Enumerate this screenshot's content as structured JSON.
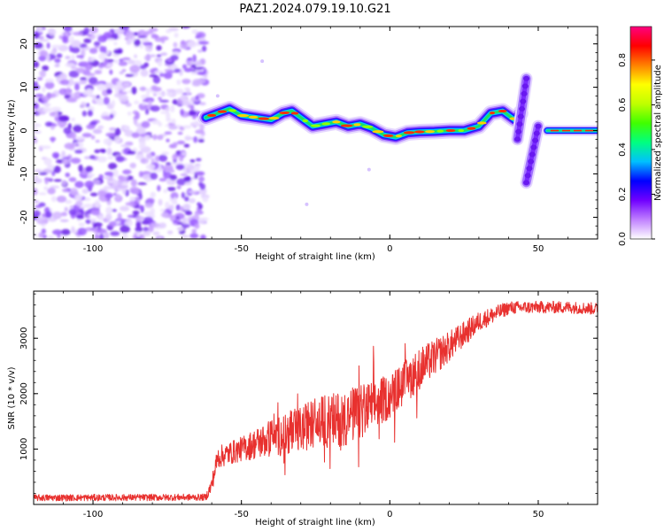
{
  "title": "PAZ1.2024.079.19.10.G21",
  "chart_data": [
    {
      "type": "heatmap",
      "xlabel": "Height of straight line (km)",
      "ylabel": "Frequency (Hz)",
      "xlim": [
        -120,
        70
      ],
      "ylim": [
        -25,
        24
      ],
      "xticks": [
        -100,
        -50,
        0,
        50
      ],
      "yticks": [
        -20,
        -10,
        0,
        10,
        20
      ],
      "colorbar": {
        "label": "Normalized spectral amplitude",
        "range": [
          0,
          0.95
        ],
        "ticks": [
          0.0,
          0.2,
          0.4,
          0.6,
          0.8
        ],
        "tick_labels": [
          "0.0",
          "0.2",
          "0.4",
          "0.6",
          "0.8"
        ],
        "colors": [
          "#ffffff",
          "#c080ff",
          "#7000ff",
          "#0000ff",
          "#00c0ff",
          "#00ff80",
          "#40ff00",
          "#c0ff00",
          "#ffff00",
          "#ff8000",
          "#ff0000",
          "#ff0080"
        ]
      },
      "noise_region_x": [
        -120,
        -62
      ],
      "ridge": {
        "x": [
          -62,
          -58,
          -54,
          -50,
          -45,
          -40,
          -36,
          -33,
          -30,
          -26,
          -22,
          -18,
          -14,
          -10,
          -6,
          -2,
          2,
          6,
          10,
          15,
          20,
          25,
          30,
          34,
          38,
          42,
          44
        ],
        "y": [
          3,
          4,
          5,
          3.5,
          3,
          2.5,
          4,
          4.5,
          3,
          1,
          1.5,
          2,
          1,
          1.5,
          0.5,
          -1,
          -1.5,
          -0.5,
          -0.3,
          -0.2,
          0,
          0,
          1,
          4,
          4.5,
          2.5,
          4
        ]
      },
      "vertical_feature_1": {
        "x": [
          43,
          46
        ],
        "y": [
          -2,
          12
        ]
      },
      "vertical_feature_2": {
        "x": [
          46,
          50
        ],
        "y": [
          -12,
          1
        ]
      },
      "flat_line": {
        "x": [
          53,
          70
        ],
        "y": 0
      }
    },
    {
      "type": "line",
      "xlabel": "Height of straight line (km)",
      "ylabel": "SNR (10 * v/v)",
      "xlim": [
        -120,
        70
      ],
      "ylim": [
        0,
        3850
      ],
      "xticks": [
        -100,
        -50,
        0,
        50
      ],
      "yticks": [
        1000,
        2000,
        3000
      ],
      "color": "#e8312f",
      "envelope": {
        "x": [
          -120,
          -62,
          -60,
          -58,
          -50,
          -40,
          -30,
          -25,
          -20,
          -10,
          0,
          10,
          20,
          30,
          40,
          50,
          60,
          70
        ],
        "y": [
          120,
          130,
          350,
          850,
          1000,
          1200,
          1350,
          1500,
          1500,
          1650,
          1950,
          2450,
          2850,
          3300,
          3550,
          3560,
          3560,
          3530
        ],
        "noise": [
          60,
          60,
          150,
          200,
          220,
          350,
          420,
          450,
          500,
          520,
          400,
          380,
          280,
          180,
          120,
          110,
          110,
          110
        ]
      }
    }
  ]
}
